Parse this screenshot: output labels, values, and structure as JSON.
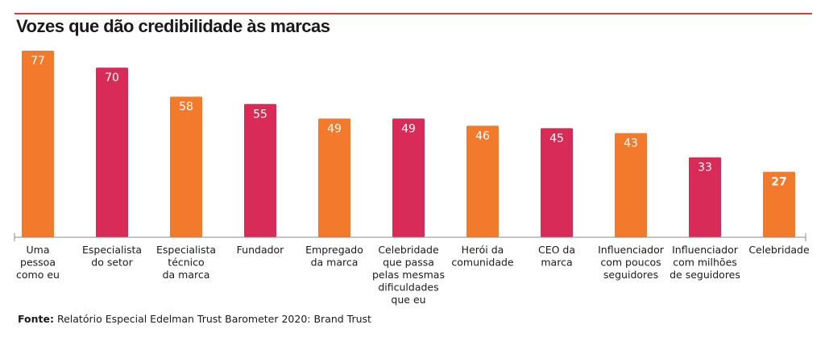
{
  "title": "Vozes que dão credibilidade às marcas",
  "source": {
    "label": "Fonte:",
    "text": "Relatório Especial Edelman Trust Barometer 2020: Brand Trust"
  },
  "colors": {
    "orange": "#f47a2b",
    "crimson": "#d92b57",
    "accent_rule": "#e03a3e",
    "axis": "#888888"
  },
  "chart_data": {
    "type": "bar",
    "title": "Vozes que dão credibilidade às marcas",
    "xlabel": "",
    "ylabel": "",
    "ylim": [
      0,
      77
    ],
    "grid": false,
    "legend": "none",
    "categories": [
      "Uma pessoa como eu",
      "Especialista do setor",
      "Especialista técnico da marca",
      "Fundador",
      "Empregado da marca",
      "Celebridade que passa pelas mesmas dificuldades que eu",
      "Herói da comunidade",
      "CEO da marca",
      "Influenciador com poucos seguidores",
      "Influenciador com milhões de seguidores",
      "Celebridade"
    ],
    "category_label_lines": [
      [
        "Uma",
        "pessoa",
        "como eu"
      ],
      [
        "Especialista",
        "do setor"
      ],
      [
        "Especialista",
        "técnico",
        "da marca"
      ],
      [
        "Fundador"
      ],
      [
        "Empregado",
        "da marca"
      ],
      [
        "Celebridade",
        "que passa",
        "pelas mesmas",
        "dificuldades",
        "que eu"
      ],
      [
        "Herói da",
        "comunidade"
      ],
      [
        "CEO da",
        "marca"
      ],
      [
        "Influenciador",
        "com poucos",
        "seguidores"
      ],
      [
        "Influenciador",
        "com milhões",
        "de seguidores"
      ],
      [
        "Celebridade"
      ]
    ],
    "values": [
      77,
      70,
      58,
      55,
      49,
      49,
      46,
      45,
      43,
      33,
      27
    ],
    "bar_colors": [
      "orange",
      "crimson",
      "orange",
      "crimson",
      "orange",
      "crimson",
      "orange",
      "crimson",
      "orange",
      "crimson",
      "orange"
    ]
  }
}
